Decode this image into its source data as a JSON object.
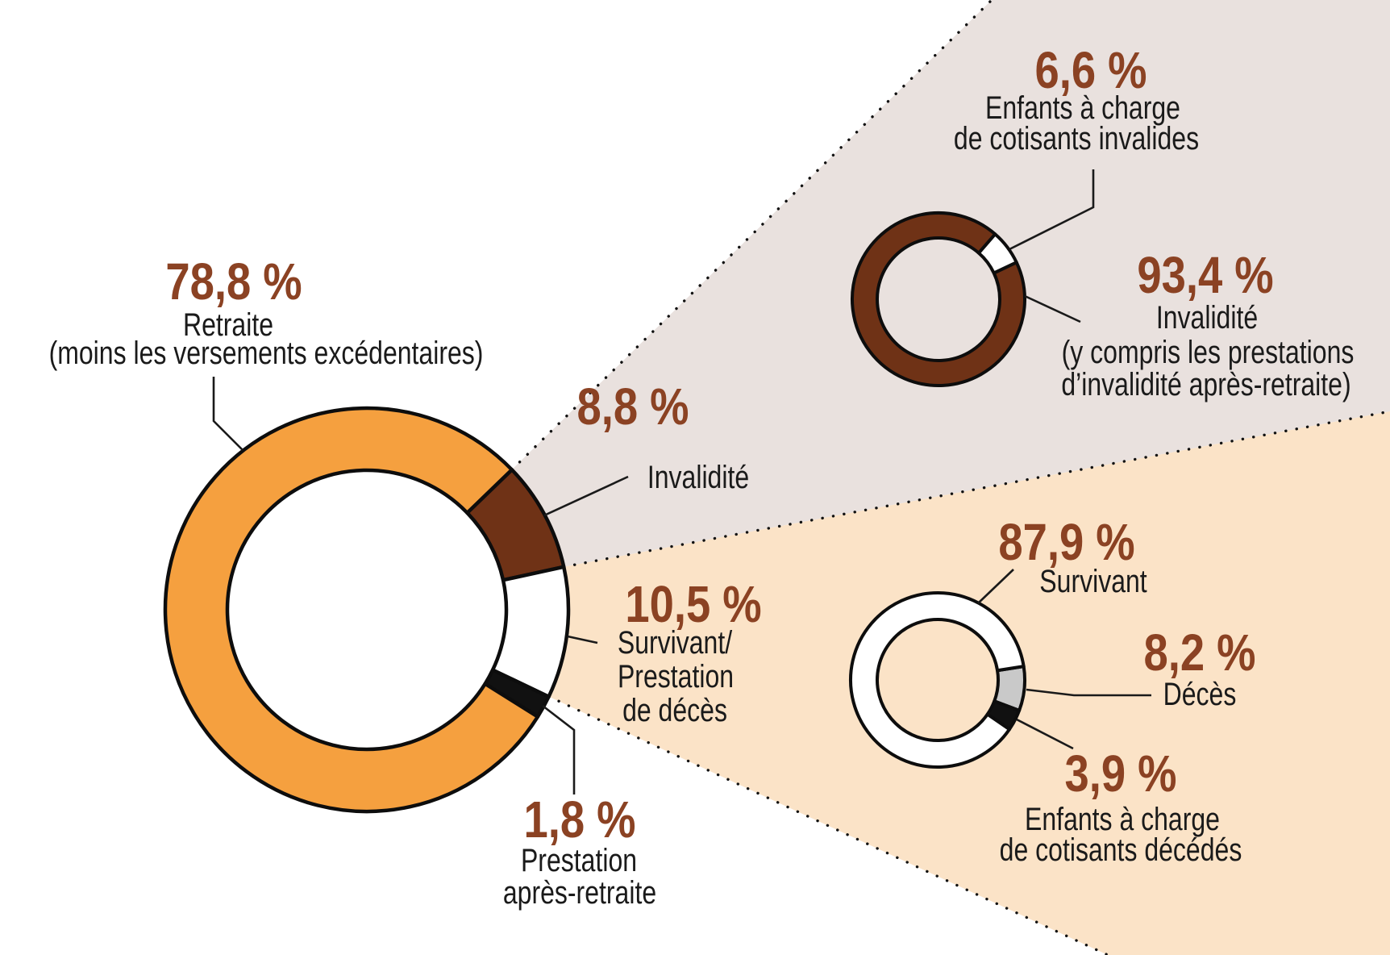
{
  "figure": {
    "language": "fr",
    "description": "Répartition des prestations : anneau principal avec deux sous-anneaux en zoom (Invalidité et Survivant/Prestation de décès)"
  },
  "colors": {
    "background": "#ffffff",
    "retraite_orange": "#F5A03F",
    "invalidite_brown": "#6F3216",
    "survivant_white": "#FFFFFF",
    "prestation_black": "#111111",
    "deces_gray": "#C9C9C9",
    "wedge_top": "#E9E1DE",
    "wedge_bottom": "#FBE3C7",
    "outline": "#0D0D0D",
    "number_text": "#8B4223",
    "label_text": "#1A1A1A",
    "leader_line": "#1A1A1A"
  },
  "chart_data": [
    {
      "id": "main-donut",
      "type": "donut",
      "unit": "%",
      "legend_position": "callout-labels",
      "start_angle_deg": 46,
      "slices": [
        {
          "key": "invalidite",
          "label": "Invalidité",
          "value": 8.8,
          "display": "8,8 %",
          "color_key": "invalidite_brown"
        },
        {
          "key": "survivant-prestation-deces",
          "label": "Survivant/Prestation de décès",
          "value": 10.5,
          "display": "10,5 %",
          "color_key": "survivant_white"
        },
        {
          "key": "prestation-apres-retraite",
          "label": "Prestation après-retraite",
          "value": 1.8,
          "display": "1,8 %",
          "color_key": "prestation_black"
        },
        {
          "key": "retraite",
          "label": "Retraite (moins les versements excédentaires)",
          "value": 78.8,
          "display": "78,8 %",
          "color_key": "retraite_orange"
        }
      ]
    },
    {
      "id": "invalidite-breakdown",
      "type": "donut",
      "unit": "%",
      "legend_position": "callout-labels",
      "start_angle_deg": 41,
      "slices": [
        {
          "key": "enfants-invalides",
          "label": "Enfants à charge de cotisants invalides",
          "value": 6.6,
          "display": "6,6 %",
          "color_key": "survivant_white"
        },
        {
          "key": "invalidite-sub",
          "label": "Invalidité (y compris les prestations d’invalidité après-retraite)",
          "value": 93.4,
          "display": "93,4 %",
          "color_key": "invalidite_brown"
        }
      ]
    },
    {
      "id": "survivant-breakdown",
      "type": "donut",
      "unit": "%",
      "legend_position": "callout-labels",
      "start_angle_deg": 81,
      "slices": [
        {
          "key": "deces",
          "label": "Décès",
          "value": 8.2,
          "display": "8,2 %",
          "color_key": "deces_gray"
        },
        {
          "key": "enfants-decedes",
          "label": "Enfants à charge de cotisants décédés",
          "value": 3.9,
          "display": "3,9 %",
          "color_key": "prestation_black"
        },
        {
          "key": "survivant",
          "label": "Survivant",
          "value": 87.9,
          "display": "87,9 %",
          "color_key": "survivant_white"
        }
      ]
    }
  ],
  "labels": [
    {
      "id": "retraite",
      "pct": "78,8 %",
      "lines": [
        "Retraite",
        "(moins les versements excédentaires)"
      ]
    },
    {
      "id": "invalidite-main",
      "pct": "8,8 %",
      "lines": [
        "Invalidité"
      ]
    },
    {
      "id": "survivant-main",
      "pct": "10,5 %",
      "lines": [
        "Survivant/",
        "Prestation",
        "de décès"
      ]
    },
    {
      "id": "prestation-apres-retraite",
      "pct": "1,8 %",
      "lines": [
        "Prestation",
        "après-retraite"
      ]
    },
    {
      "id": "enfants-invalides",
      "pct": "6,6 %",
      "lines": [
        "Enfants à charge",
        "de cotisants invalides"
      ]
    },
    {
      "id": "invalidite-sub",
      "pct": "93,4 %",
      "lines": [
        "Invalidité",
        "(y compris les prestations",
        "d’invalidité après-retraite)"
      ]
    },
    {
      "id": "survivant-sub",
      "pct": "87,9 %",
      "lines": [
        "Survivant"
      ]
    },
    {
      "id": "deces",
      "pct": "8,2 %",
      "lines": [
        "Décès"
      ]
    },
    {
      "id": "enfants-decedes",
      "pct": "3,9 %",
      "lines": [
        "Enfants à charge",
        "de cotisants décédés"
      ]
    }
  ]
}
